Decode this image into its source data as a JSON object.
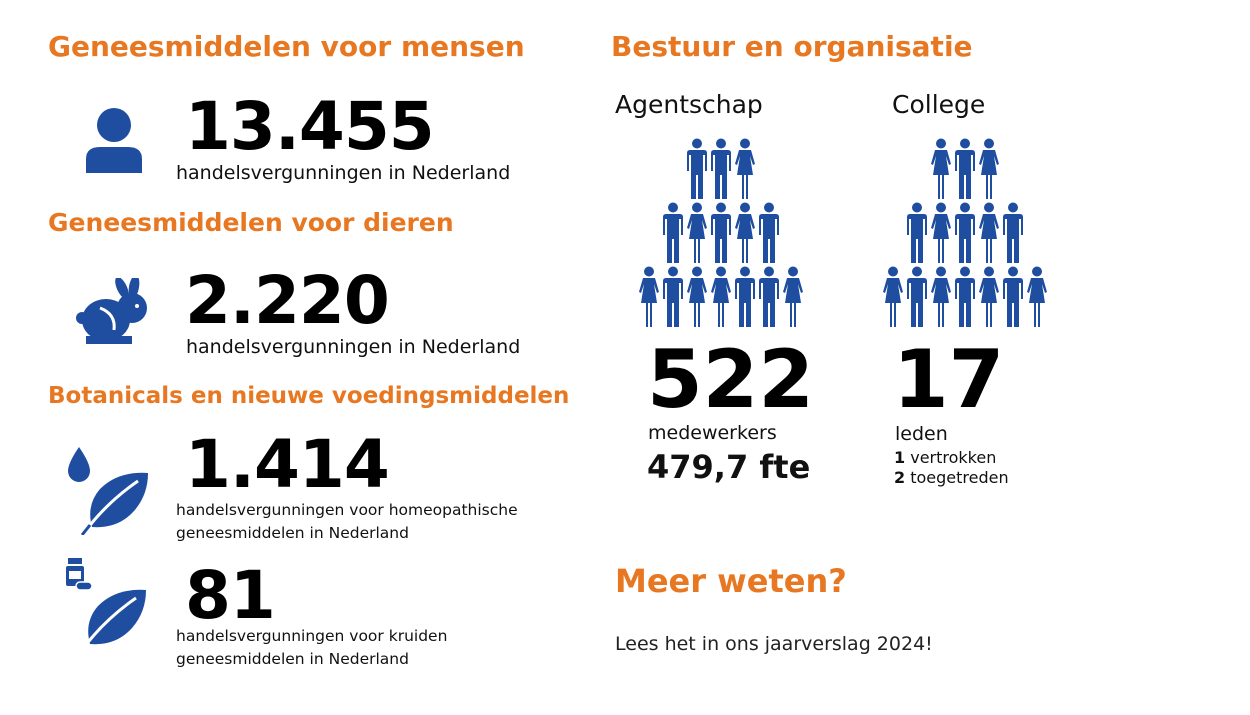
{
  "colors": {
    "accent": "#e87722",
    "icon": "#1f4ea1",
    "text": "#111111"
  },
  "left": {
    "humans": {
      "heading": "Geneesmiddelen voor mensen",
      "icon": "person-icon",
      "value": "13.455",
      "caption": "handelsvergunningen in Nederland"
    },
    "animals": {
      "heading": "Geneesmiddelen voor dieren",
      "icon": "rabbit-icon",
      "value": "2.220",
      "caption": "handelsvergunningen in Nederland"
    },
    "botanicals": {
      "heading": "Botanicals en nieuwe voedingsmiddelen",
      "homeopathic": {
        "icon": "drop-leaf-icon",
        "value": "1.414",
        "caption_line1": "handelsvergunningen voor homeopathische",
        "caption_line2": "geneesmiddelen in Nederland"
      },
      "herbal": {
        "icon": "pill-bottle-leaf-icon",
        "value": "81",
        "caption_line1": "handelsvergunningen voor kruiden",
        "caption_line2": "geneesmiddelen in Nederland"
      }
    }
  },
  "right": {
    "heading": "Bestuur en organisatie",
    "agency": {
      "label": "Agentschap",
      "icon": "people-pyramid-icon",
      "value": "522",
      "caption": "medewerkers",
      "fte": "479,7 fte"
    },
    "board": {
      "label": "College",
      "icon": "people-pyramid-icon",
      "value": "17",
      "caption": "leden",
      "departed_count": "1",
      "departed_label": "vertrokken",
      "joined_count": "2",
      "joined_label": "toegetreden"
    },
    "more": {
      "heading": "Meer weten?",
      "text": "Lees het in ons jaarverslag 2024!"
    }
  }
}
